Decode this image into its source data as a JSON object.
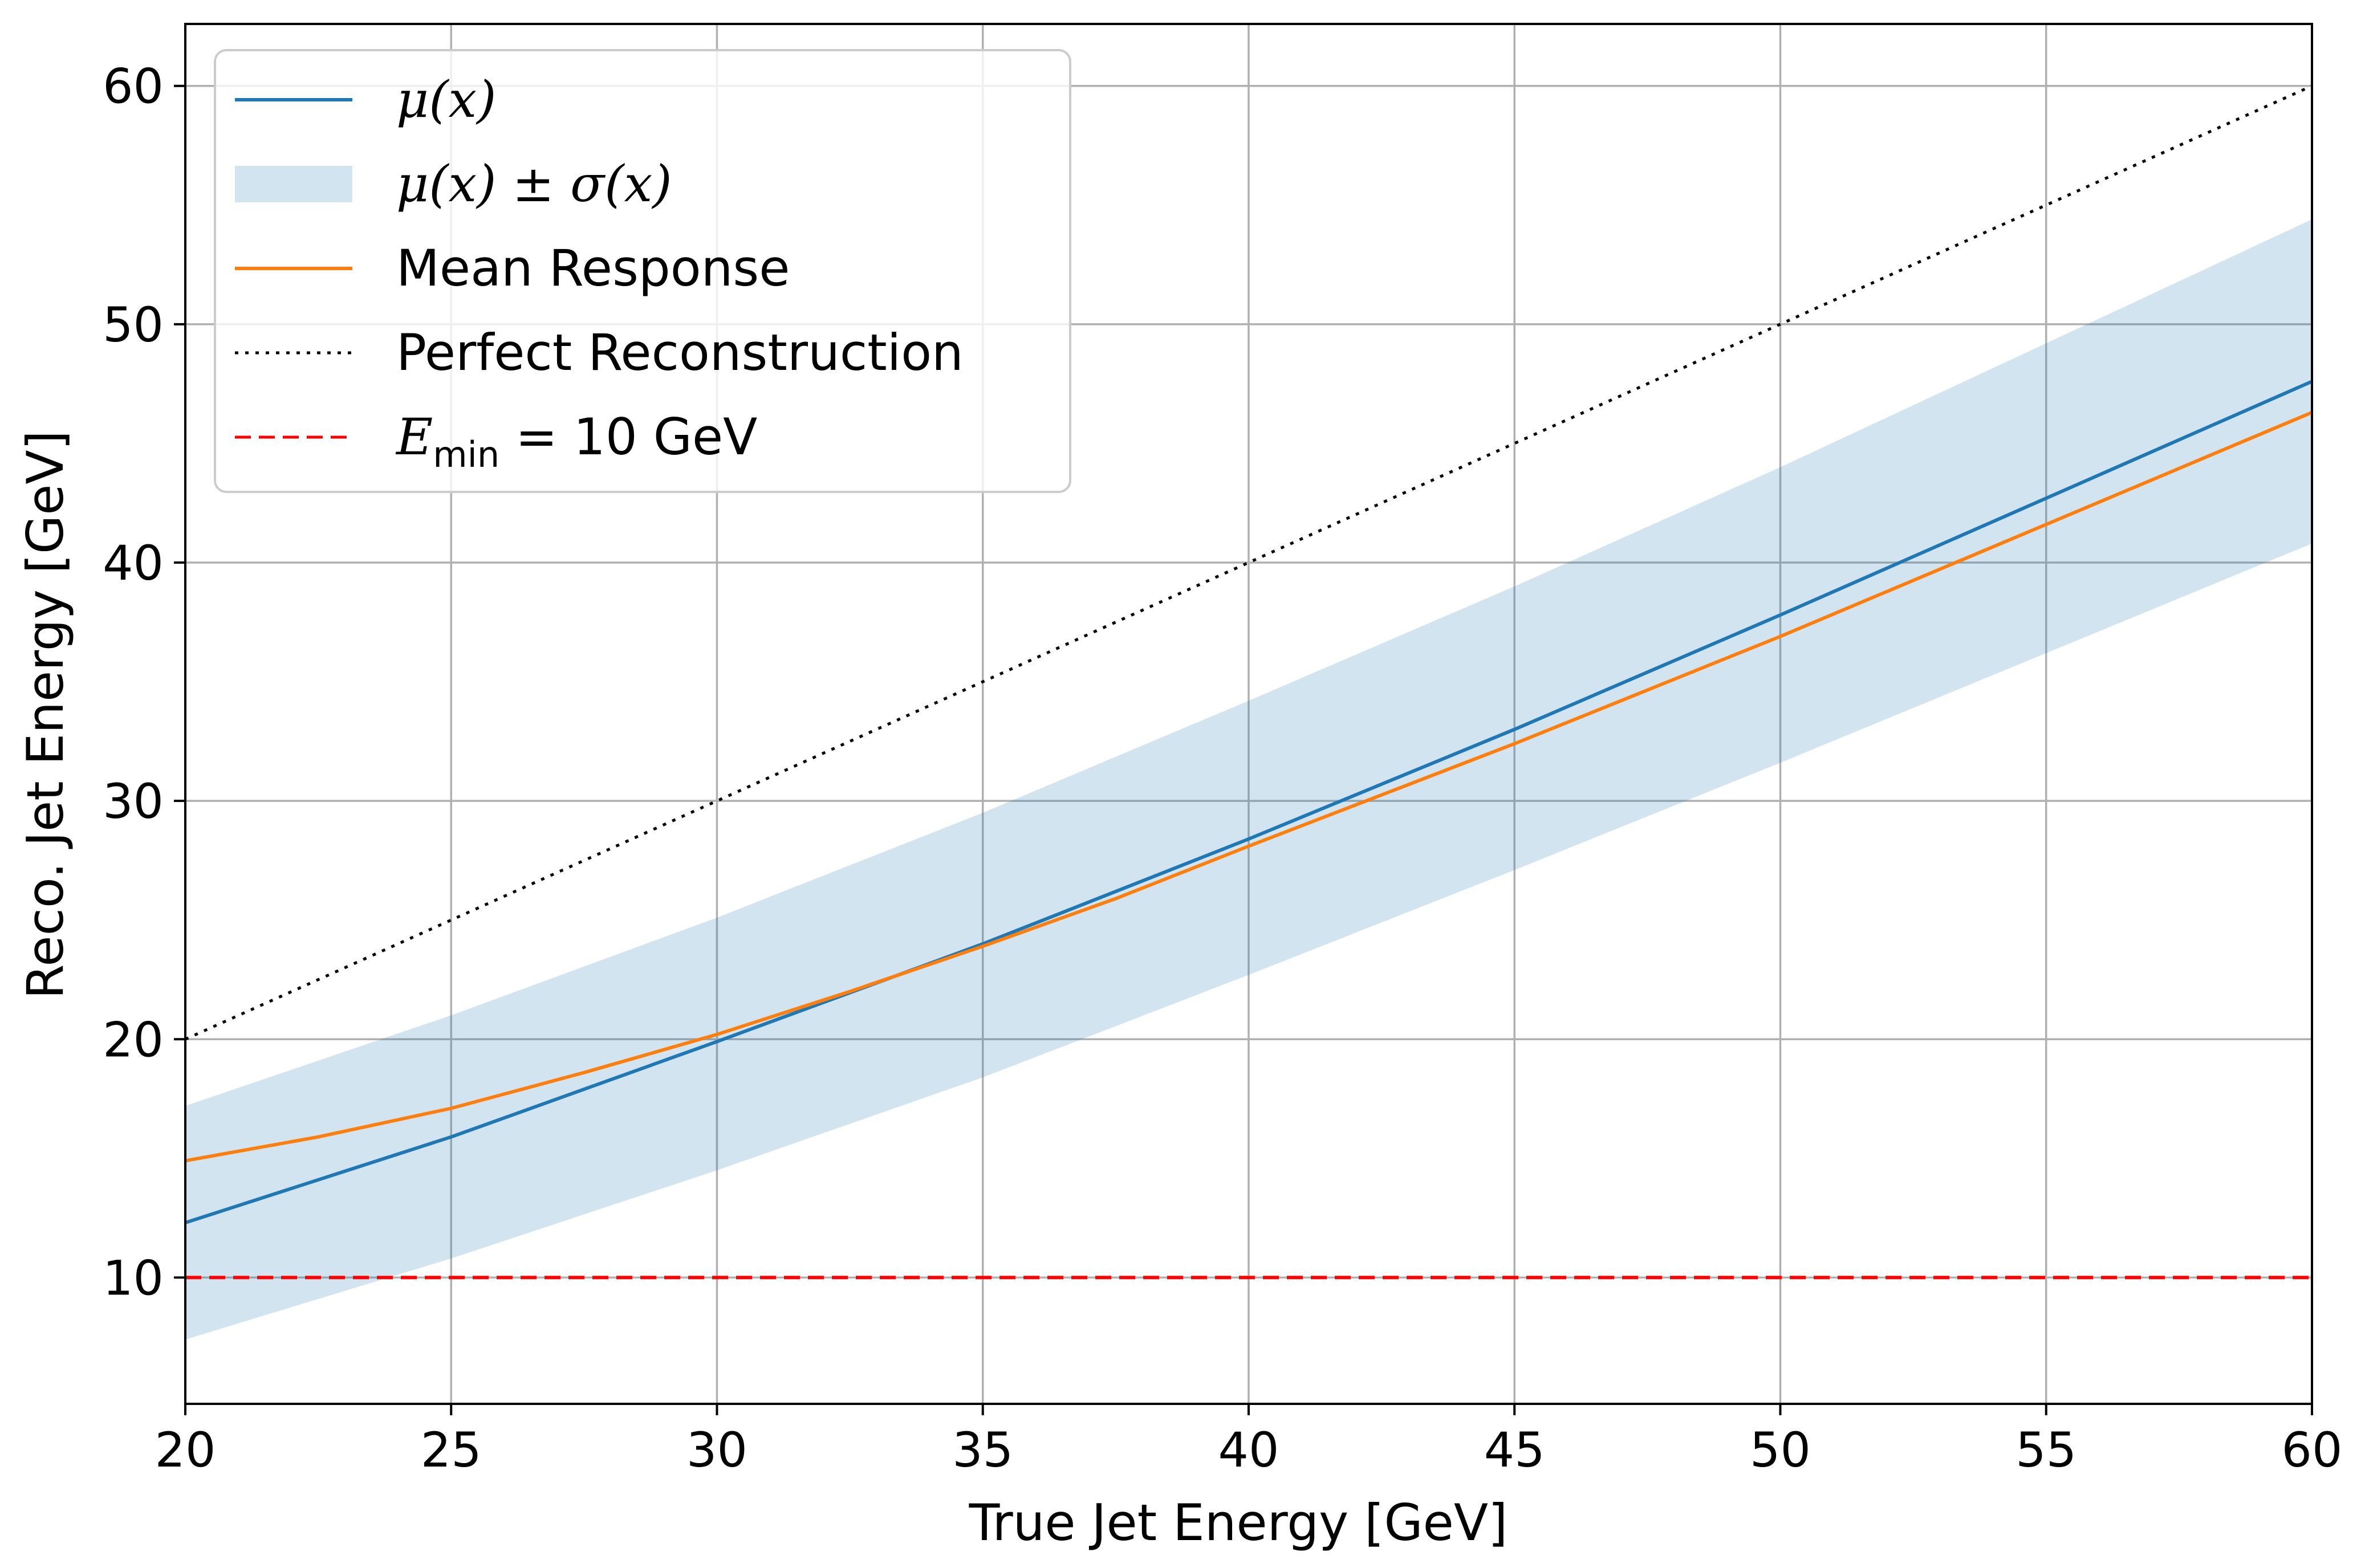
{
  "chart_data": {
    "type": "line",
    "xlabel": "True Jet Energy [GeV]",
    "ylabel": "Reco. Jet Energy [GeV]",
    "xlim": [
      20,
      60
    ],
    "ylim": [
      4.7,
      62.6
    ],
    "xticks": [
      20,
      25,
      30,
      35,
      40,
      45,
      50,
      55,
      60
    ],
    "yticks": [
      10,
      20,
      30,
      40,
      50,
      60
    ],
    "grid": true,
    "legend_position": "upper-left",
    "series": [
      {
        "name": "μ(x)",
        "kind": "line",
        "color": "#1f77b4",
        "x": [
          20,
          25,
          30,
          35,
          40,
          45,
          50,
          55,
          60
        ],
        "y": [
          12.3,
          15.9,
          19.9,
          24.0,
          28.4,
          33.0,
          37.8,
          42.7,
          47.6
        ]
      },
      {
        "name": "μ(x) ± σ(x)",
        "kind": "band",
        "color": "#1f77b4",
        "opacity": 0.2,
        "x": [
          20,
          25,
          30,
          35,
          40,
          45,
          50,
          55,
          60
        ],
        "lower": [
          7.4,
          10.8,
          14.5,
          18.4,
          22.7,
          27.1,
          31.6,
          36.2,
          40.8
        ],
        "upper": [
          17.2,
          21.0,
          25.1,
          29.5,
          34.2,
          39.0,
          44.0,
          49.2,
          54.4
        ]
      },
      {
        "name": "Mean Response",
        "kind": "line",
        "color": "#ff7f0e",
        "x": [
          20,
          22.5,
          25,
          27.5,
          30,
          32.5,
          35,
          37.5,
          40,
          45,
          50,
          55,
          60
        ],
        "y": [
          14.9,
          15.9,
          17.1,
          18.6,
          20.2,
          22.0,
          23.9,
          25.9,
          28.1,
          32.4,
          36.9,
          41.6,
          46.3
        ]
      },
      {
        "name": "Perfect Reconstruction",
        "kind": "line",
        "style": "dotted",
        "color": "#000000",
        "x": [
          20,
          60
        ],
        "y": [
          20,
          60
        ]
      },
      {
        "name": "E_min = 10 GeV",
        "kind": "hline",
        "style": "dashed",
        "color": "#ff0000",
        "y": 10
      }
    ],
    "legend": {
      "entries": [
        {
          "math": true,
          "parts": [
            "μ(x)"
          ]
        },
        {
          "math": true,
          "parts": [
            "μ(x) ± σ(x)"
          ]
        },
        {
          "math": false,
          "parts": [
            "Mean Response"
          ]
        },
        {
          "math": false,
          "parts": [
            "Perfect Reconstruction"
          ]
        },
        {
          "math": true,
          "parts": [
            "E",
            "min",
            " = 10 GeV"
          ]
        }
      ]
    }
  }
}
